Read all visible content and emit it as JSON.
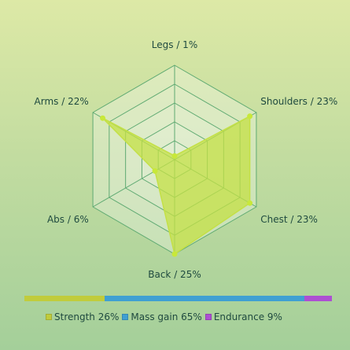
{
  "chart_data": {
    "type": "radar",
    "max": 25,
    "axes": [
      {
        "label": "Legs / 1%",
        "value": 1
      },
      {
        "label": "Shoulders / 23%",
        "value": 23
      },
      {
        "label": "Chest / 23%",
        "value": 23
      },
      {
        "label": "Back / 25%",
        "value": 25
      },
      {
        "label": "Abs / 6%",
        "value": 6
      },
      {
        "label": "Arms / 22%",
        "value": 22
      }
    ],
    "fill_color": "#c4e046",
    "point_color": "#c8e83a",
    "grid_color": "#5faa72",
    "breakdown": [
      {
        "label": "Strength 26%",
        "value": 26,
        "color": "#c0cc3c"
      },
      {
        "label": "Mass gain 65%",
        "value": 65,
        "color": "#3fa0d2"
      },
      {
        "label": "Endurance 9%",
        "value": 9,
        "color": "#ad4fd2"
      }
    ]
  }
}
